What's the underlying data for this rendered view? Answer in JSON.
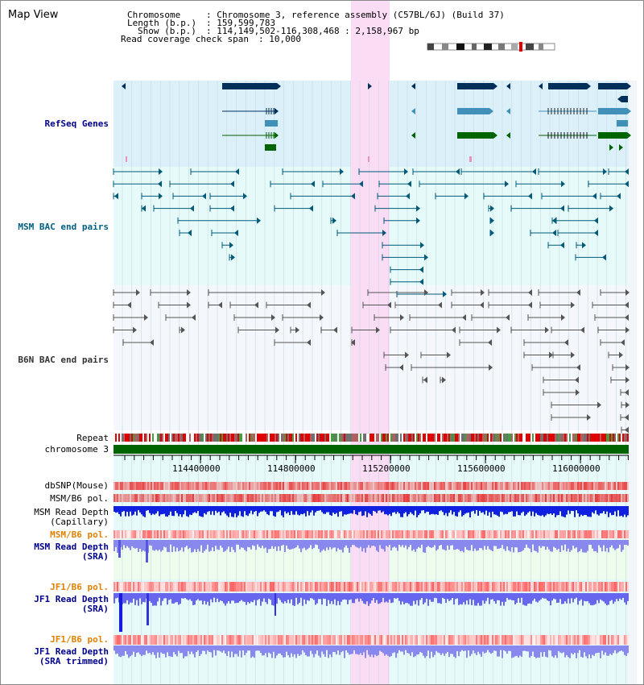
{
  "title": "Map View",
  "header": {
    "chromosome_label": "Chromosome",
    "chromosome_value": ": Chromosome 3, reference assembly (C57BL/6J) (Build 37)",
    "length_label": "Length (b.p.)",
    "length_value": ": 159,599,783",
    "show_label": "Show (b.p.)",
    "show_value": ": 114,149,502-116,308,468 : 2,158,967 bp",
    "coverage_label": "Read coverage check span",
    "coverage_value": ": 10,000"
  },
  "tracks": {
    "refseq": "RefSeq Genes",
    "msm_bac": "MSM BAC end pairs",
    "b6n_bac": "B6N BAC end pairs",
    "repeat": "Repeat",
    "chromosome": "chromosome 3",
    "dbsnp": "dbSNP(Mouse)",
    "msm_pol1": "MSM/B6 pol.",
    "msm_depth_cap_1": "MSM Read Depth",
    "msm_depth_cap_2": "(Capillary)",
    "msm_pol2": "MSM/B6 pol.",
    "msm_depth_sra_1": "MSM Read Depth",
    "msm_depth_sra_2": "(SRA)",
    "jf1_pol1": "JF1/B6 pol.",
    "jf1_depth_1": "JF1 Read Depth",
    "jf1_depth_2": "(SRA)",
    "jf1_pol2": "JF1/B6 pol.",
    "jf1_trim_1": "JF1 Read Depth",
    "jf1_trim_2": "(SRA trimmed)"
  },
  "axis_ticks": [
    "114400000",
    "114800000",
    "115200000",
    "115600000",
    "116000000"
  ],
  "colors": {
    "refseq_bg": "#dcf0fa",
    "bac_bg": "#e6fafa",
    "b6n_bg": "#f4f8fc",
    "highlight": "#fadcf5",
    "gene_navy": "#00305a",
    "gene_blue": "#4090b8",
    "gene_green": "#006400",
    "chromosome": "#006400",
    "msm_line": "#005a78",
    "b6n_line": "#555555"
  }
}
